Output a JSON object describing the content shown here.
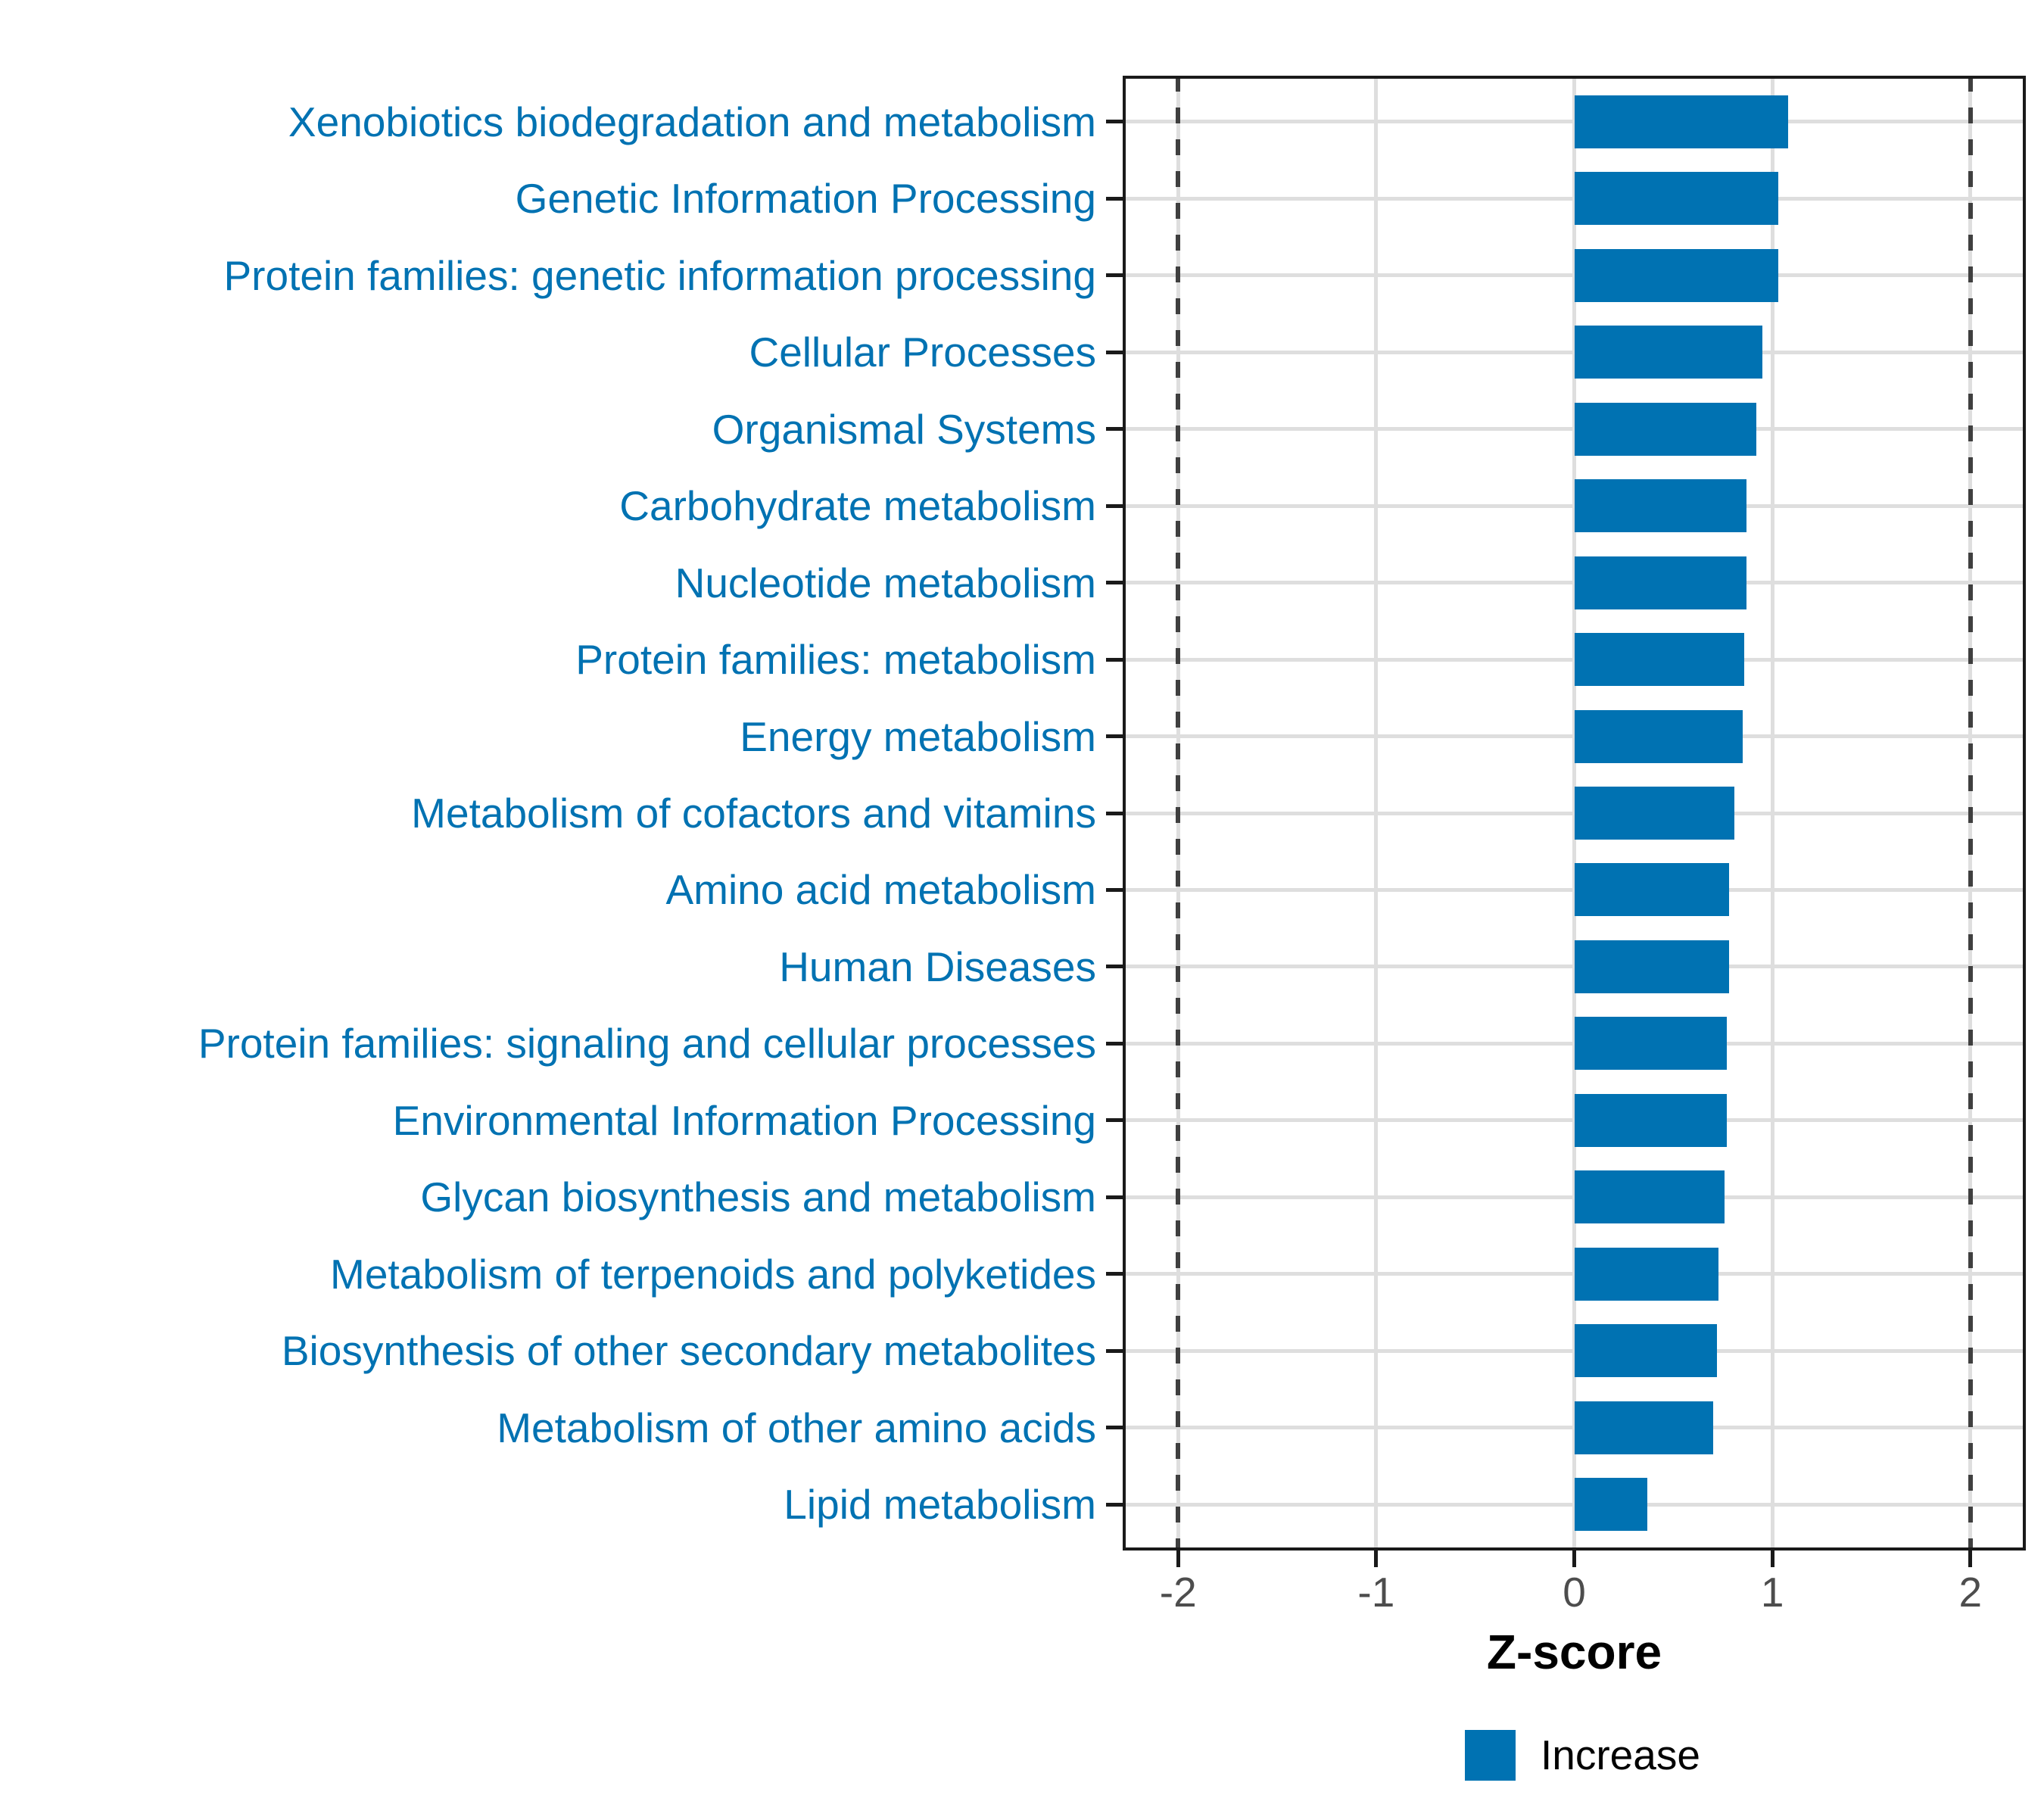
{
  "chart_data": {
    "type": "bar",
    "orientation": "horizontal",
    "title": "",
    "xlabel": "Z-score",
    "ylabel": "",
    "xlim": [
      -2.28,
      2.28
    ],
    "x_ticks": [
      -2,
      -1,
      0,
      1,
      2
    ],
    "x_tick_labels": [
      "-2",
      "-1",
      "0",
      "1",
      "2"
    ],
    "grid": true,
    "reference_lines": [
      -2,
      2
    ],
    "legend_position": "bottom",
    "series_name": "Increase",
    "categories": [
      "Xenobiotics biodegradation and metabolism",
      "Genetic Information Processing",
      "Protein families: genetic information processing",
      "Cellular Processes",
      "Organismal Systems",
      "Carbohydrate metabolism",
      "Nucleotide metabolism",
      "Protein families: metabolism",
      "Energy metabolism",
      "Metabolism of cofactors and vitamins",
      "Amino acid metabolism",
      "Human Diseases",
      "Protein families: signaling and cellular processes",
      "Environmental Information Processing",
      "Glycan biosynthesis and metabolism",
      "Metabolism of terpenoids and polyketides",
      "Biosynthesis of other secondary metabolites",
      "Metabolism of other amino acids",
      "Lipid metabolism"
    ],
    "values": [
      1.08,
      1.03,
      1.03,
      0.95,
      0.92,
      0.87,
      0.87,
      0.86,
      0.85,
      0.81,
      0.78,
      0.78,
      0.77,
      0.77,
      0.76,
      0.73,
      0.72,
      0.7,
      0.37
    ]
  },
  "legend": {
    "increase_label": "Increase"
  },
  "axis": {
    "x_title": "Z-score"
  },
  "colors": {
    "bar_fill": "#0072b2",
    "category_label": "#0072b2",
    "tick_label": "#4d4d4d",
    "gridline": "#dedede",
    "reference_line": "#3f3f3f",
    "panel_border": "#1a1a1a",
    "legend_key": "#0072b2"
  }
}
